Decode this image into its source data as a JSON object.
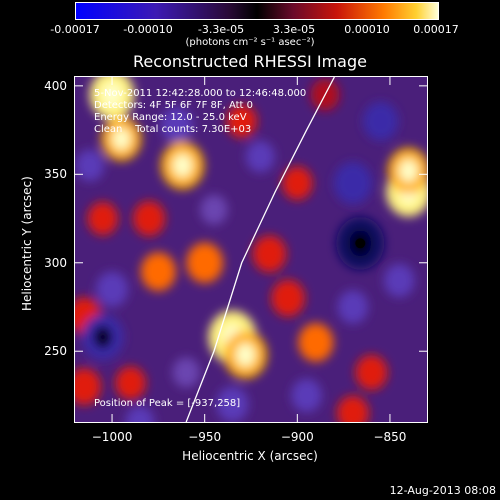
{
  "colorbar": {
    "ticks": [
      "-0.00017",
      "-0.00010",
      "-3.3e-05",
      "3.3e-05",
      "0.00010",
      "0.00017"
    ],
    "units": "(photons cm⁻² s⁻¹ asec⁻²)",
    "min": -0.00017,
    "max": 0.00017
  },
  "chart_data": {
    "type": "heatmap",
    "title": "Reconstructed RHESSI Image",
    "xlabel": "Heliocentric X (arcsec)",
    "ylabel": "Heliocentric Y (arcsec)",
    "xlim": [
      -1020,
      -830
    ],
    "ylim": [
      210,
      405
    ],
    "xticks": [
      -1000,
      -950,
      -900,
      -850
    ],
    "xtick_labels": [
      "−1000",
      "−950",
      "−900",
      "−850"
    ],
    "yticks": [
      250,
      300,
      350,
      400
    ],
    "ytick_labels": [
      "250",
      "300",
      "350",
      "400"
    ],
    "annotations": [
      "5-Nov-2011 12:42:28.000 to 12:46:48.000",
      "Detectors: 4F 5F 6F 7F 8F, Att 0",
      "Energy Range: 12.0 - 25.0 keV",
      "Clean    Total counts: 7.30E+03"
    ],
    "peak_label": "Position of Peak = [-937,258]",
    "peak": {
      "x": -937,
      "y": 258
    },
    "min_marker": {
      "x": -866,
      "y": 311
    },
    "limb_curve": [
      [
        -960,
        210
      ],
      [
        -945,
        250
      ],
      [
        -930,
        300
      ],
      [
        -912,
        340
      ],
      [
        -895,
        375
      ],
      [
        -880,
        405
      ]
    ],
    "blobs": [
      {
        "x": -935,
        "y": 258,
        "v": 1.0
      },
      {
        "x": -928,
        "y": 248,
        "v": 0.85
      },
      {
        "x": -1000,
        "y": 395,
        "v": 0.9
      },
      {
        "x": -995,
        "y": 370,
        "v": 0.75
      },
      {
        "x": -962,
        "y": 355,
        "v": 0.85
      },
      {
        "x": -840,
        "y": 340,
        "v": 0.9
      },
      {
        "x": -840,
        "y": 352,
        "v": 0.8
      },
      {
        "x": -950,
        "y": 300,
        "v": 0.65
      },
      {
        "x": -975,
        "y": 295,
        "v": 0.6
      },
      {
        "x": -915,
        "y": 305,
        "v": 0.55
      },
      {
        "x": -905,
        "y": 280,
        "v": 0.55
      },
      {
        "x": -890,
        "y": 255,
        "v": 0.6
      },
      {
        "x": -1015,
        "y": 270,
        "v": 0.55
      },
      {
        "x": -1015,
        "y": 230,
        "v": 0.55
      },
      {
        "x": -860,
        "y": 238,
        "v": 0.5
      },
      {
        "x": -990,
        "y": 232,
        "v": 0.45
      },
      {
        "x": -900,
        "y": 345,
        "v": 0.45
      },
      {
        "x": -930,
        "y": 380,
        "v": 0.45
      },
      {
        "x": -885,
        "y": 395,
        "v": 0.4
      },
      {
        "x": -980,
        "y": 325,
        "v": 0.5
      },
      {
        "x": -870,
        "y": 215,
        "v": 0.5
      },
      {
        "x": -1005,
        "y": 325,
        "v": 0.45
      },
      {
        "x": -866,
        "y": 311,
        "v": -1.0
      },
      {
        "x": -870,
        "y": 345,
        "v": -0.7
      },
      {
        "x": -855,
        "y": 380,
        "v": -0.6
      },
      {
        "x": -1005,
        "y": 258,
        "v": -0.8
      },
      {
        "x": -1000,
        "y": 285,
        "v": -0.5
      },
      {
        "x": -965,
        "y": 378,
        "v": -0.5
      },
      {
        "x": -935,
        "y": 220,
        "v": -0.5
      },
      {
        "x": -895,
        "y": 225,
        "v": -0.45
      },
      {
        "x": -945,
        "y": 330,
        "v": -0.35
      },
      {
        "x": -920,
        "y": 360,
        "v": -0.4
      },
      {
        "x": -1012,
        "y": 355,
        "v": -0.4
      },
      {
        "x": -870,
        "y": 275,
        "v": -0.45
      },
      {
        "x": -845,
        "y": 290,
        "v": -0.45
      },
      {
        "x": -960,
        "y": 238,
        "v": -0.35
      },
      {
        "x": -985,
        "y": 210,
        "v": -0.4
      }
    ]
  },
  "timestamp": "12-Aug-2013 08:08"
}
